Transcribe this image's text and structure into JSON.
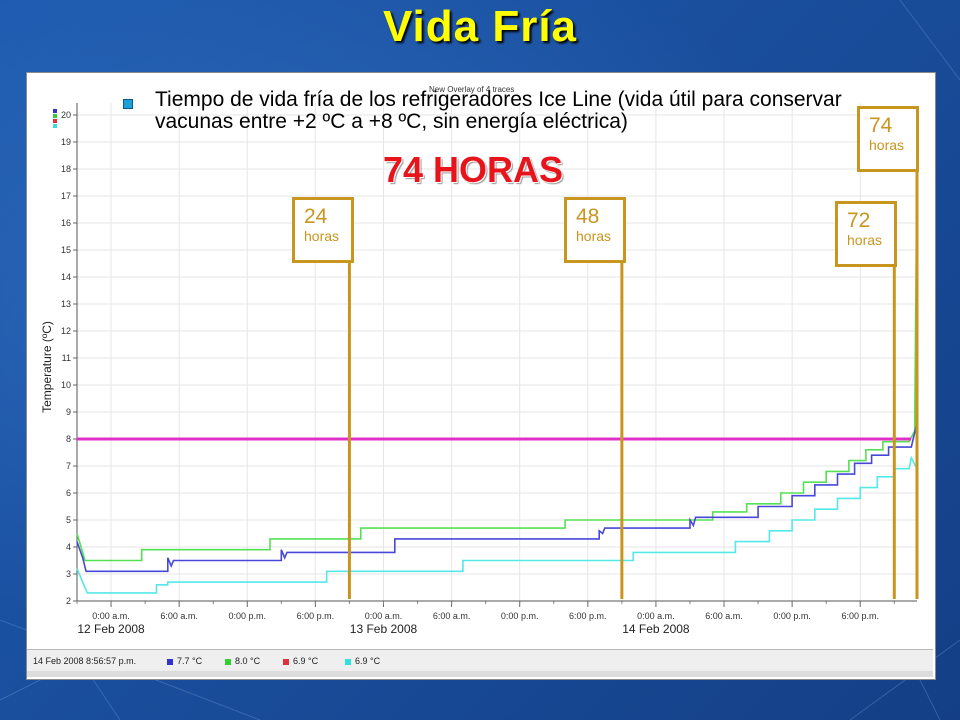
{
  "slide": {
    "title": "Vida Fría"
  },
  "bullet": {
    "text": "Tiempo de vida fría de los refrigeradores Ice Line (vida útil para conservar vacunas entre +2 ºC a +8 ºC, sin energía eléctrica)"
  },
  "headline": "74 HORAS",
  "overlay_caption": "New Overlay of 4 traces",
  "markers": [
    {
      "num": "24",
      "unit": "horas"
    },
    {
      "num": "48",
      "unit": "horas"
    },
    {
      "num": "72",
      "unit": "horas"
    },
    {
      "num": "74",
      "unit": "horas"
    }
  ],
  "status": {
    "timestamp": "14 Feb 2008 8:56:57 p.m.",
    "readings": [
      {
        "label": "7.7  °C",
        "color": "#3333cc"
      },
      {
        "label": "8.0  °C",
        "color": "#33cc33"
      },
      {
        "label": "6.9  °C",
        "color": "#e0303a"
      },
      {
        "label": "6.9  °C",
        "color": "#33e0e0"
      }
    ]
  },
  "chart_data": {
    "type": "line",
    "ylabel": "Temperature (ºC)",
    "ylim": [
      2,
      20
    ],
    "xlim_hours": [
      0,
      74
    ],
    "yticks": [
      "2",
      "3",
      "4",
      "5",
      "6",
      "7",
      "8",
      "9",
      "10",
      "11",
      "12",
      "13",
      "14",
      "15",
      "16",
      "17",
      "18",
      "19",
      "20"
    ],
    "xticks": [
      {
        "t": 3,
        "label": "0:00 a.m."
      },
      {
        "t": 9,
        "label": "6:00 a.m."
      },
      {
        "t": 15,
        "label": "0:00 p.m."
      },
      {
        "t": 21,
        "label": "6:00 p.m."
      },
      {
        "t": 27,
        "label": "0:00 a.m."
      },
      {
        "t": 33,
        "label": "6:00 a.m."
      },
      {
        "t": 39,
        "label": "0:00 p.m."
      },
      {
        "t": 45,
        "label": "6:00 p.m."
      },
      {
        "t": 51,
        "label": "0:00 a.m."
      },
      {
        "t": 57,
        "label": "6:00 a.m."
      },
      {
        "t": 63,
        "label": "0:00 p.m."
      },
      {
        "t": 69,
        "label": "6:00 p.m."
      }
    ],
    "date_labels": [
      {
        "t": 3,
        "label": "12 Feb 2008"
      },
      {
        "t": 27,
        "label": "13 Feb 2008"
      },
      {
        "t": 51,
        "label": "14 Feb 2008"
      }
    ],
    "threshold": {
      "value": 8.0,
      "color": "#e030c8"
    },
    "vlines_hours": [
      24,
      48,
      72
    ],
    "series": [
      {
        "color": "#55e055",
        "points": [
          [
            0,
            4.5
          ],
          [
            0.5,
            3.8
          ],
          [
            0.7,
            3.5
          ],
          [
            5.7,
            3.5
          ],
          [
            5.7,
            3.9
          ],
          [
            17,
            3.9
          ],
          [
            17,
            4.3
          ],
          [
            25,
            4.3
          ],
          [
            25,
            4.7
          ],
          [
            43,
            4.7
          ],
          [
            43,
            5.0
          ],
          [
            56,
            5.0
          ],
          [
            56,
            5.3
          ],
          [
            59,
            5.3
          ],
          [
            59,
            5.6
          ],
          [
            62,
            5.6
          ],
          [
            62,
            6.0
          ],
          [
            64,
            6.0
          ],
          [
            64,
            6.4
          ],
          [
            66,
            6.4
          ],
          [
            66,
            6.8
          ],
          [
            68,
            6.8
          ],
          [
            68,
            7.2
          ],
          [
            69.5,
            7.2
          ],
          [
            69.5,
            7.6
          ],
          [
            71,
            7.6
          ],
          [
            71,
            7.9
          ],
          [
            73.3,
            7.9
          ],
          [
            73.8,
            8.3
          ],
          [
            74,
            18.5
          ]
        ]
      },
      {
        "color": "#4848d8",
        "points": [
          [
            0,
            4.2
          ],
          [
            0.5,
            3.6
          ],
          [
            0.8,
            3.1
          ],
          [
            8,
            3.1
          ],
          [
            8,
            3.6
          ],
          [
            8.3,
            3.3
          ],
          [
            8.5,
            3.5
          ],
          [
            18,
            3.5
          ],
          [
            18,
            3.9
          ],
          [
            18.3,
            3.6
          ],
          [
            18.5,
            3.8
          ],
          [
            28,
            3.8
          ],
          [
            28,
            4.3
          ],
          [
            46,
            4.3
          ],
          [
            46,
            4.6
          ],
          [
            46.3,
            4.5
          ],
          [
            46.5,
            4.7
          ],
          [
            54,
            4.7
          ],
          [
            54,
            5.0
          ],
          [
            54.3,
            4.8
          ],
          [
            54.5,
            5.1
          ],
          [
            60,
            5.1
          ],
          [
            60,
            5.5
          ],
          [
            63,
            5.5
          ],
          [
            63,
            5.9
          ],
          [
            65,
            5.9
          ],
          [
            65,
            6.3
          ],
          [
            67,
            6.3
          ],
          [
            67,
            6.7
          ],
          [
            68.5,
            6.7
          ],
          [
            68.5,
            7.1
          ],
          [
            70,
            7.1
          ],
          [
            70,
            7.4
          ],
          [
            71.5,
            7.4
          ],
          [
            71.5,
            7.7
          ],
          [
            73.5,
            7.7
          ],
          [
            74,
            8.6
          ]
        ]
      },
      {
        "color": "#55e8e8",
        "points": [
          [
            0,
            3.2
          ],
          [
            0.6,
            2.6
          ],
          [
            0.9,
            2.3
          ],
          [
            7,
            2.3
          ],
          [
            7,
            2.6
          ],
          [
            8,
            2.6
          ],
          [
            8,
            2.7
          ],
          [
            22,
            2.7
          ],
          [
            22,
            3.1
          ],
          [
            34,
            3.1
          ],
          [
            34,
            3.5
          ],
          [
            49,
            3.5
          ],
          [
            49,
            3.8
          ],
          [
            58,
            3.8
          ],
          [
            58,
            4.2
          ],
          [
            61,
            4.2
          ],
          [
            61,
            4.6
          ],
          [
            63,
            4.6
          ],
          [
            63,
            5.0
          ],
          [
            65,
            5.0
          ],
          [
            65,
            5.4
          ],
          [
            67,
            5.4
          ],
          [
            67,
            5.8
          ],
          [
            69,
            5.8
          ],
          [
            69,
            6.2
          ],
          [
            70.5,
            6.2
          ],
          [
            70.5,
            6.6
          ],
          [
            72,
            6.6
          ],
          [
            72,
            6.9
          ],
          [
            73.3,
            6.9
          ],
          [
            73.5,
            7.3
          ],
          [
            74,
            6.9
          ]
        ]
      }
    ]
  }
}
